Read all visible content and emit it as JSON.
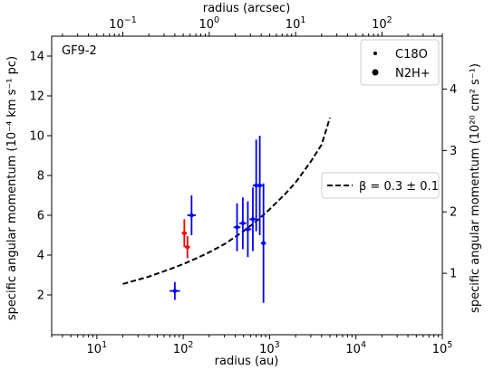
{
  "chart_data": {
    "type": "scatter",
    "annotation": "GF9-2",
    "xlabel": "radius (au)",
    "x2label": "radius (arcsec)",
    "ylabel": "specific angular momentum (10⁻⁴ km s⁻¹ pc)",
    "y2label": "specific angular momentum (10²⁰ cm² s⁻¹)",
    "xscale": "log",
    "xlim": [
      3,
      100000
    ],
    "ylim": [
      0,
      15
    ],
    "x_ticks": [
      {
        "value": 10,
        "base": "10",
        "exp": "1"
      },
      {
        "value": 100,
        "base": "10",
        "exp": "2"
      },
      {
        "value": 1000,
        "base": "10",
        "exp": "3"
      },
      {
        "value": 10000,
        "base": "10",
        "exp": "4"
      },
      {
        "value": 100000,
        "base": "10",
        "exp": "5"
      }
    ],
    "y_ticks": [
      2,
      4,
      6,
      8,
      10,
      12,
      14
    ],
    "x2_ticks": [
      {
        "value": 0.1,
        "base": "10",
        "exp": "−1"
      },
      {
        "value": 1,
        "base": "10",
        "exp": "0"
      },
      {
        "value": 10,
        "base": "10",
        "exp": "1"
      },
      {
        "value": 100,
        "base": "10",
        "exp": "2"
      }
    ],
    "x2_ratio_au_per_arcsec": 200,
    "y2_ticks": [
      1,
      2,
      3,
      4
    ],
    "y2_ratio": 3.086,
    "legend_markers": [
      {
        "name": "C18O",
        "marker": "small-dot"
      },
      {
        "name": "N2H+",
        "marker": "large-dot"
      }
    ],
    "legend_line": {
      "label": "β = 0.3 ± 0.1",
      "style": "dashed"
    },
    "series": [
      {
        "color": "#0000ff",
        "points": [
          {
            "x": 80,
            "y": 2.2,
            "yerr": 0.45,
            "xerr": 0.06
          },
          {
            "x": 125,
            "y": 6.0,
            "yerr": 1.0,
            "xerr": 0.05
          },
          {
            "x": 420,
            "y": 5.4,
            "yerr": 1.2,
            "xerr": 0.04
          },
          {
            "x": 490,
            "y": 5.6,
            "yerr": 1.3,
            "xerr": 0.04
          },
          {
            "x": 560,
            "y": 5.3,
            "yerr": 1.4,
            "xerr": 0.04
          },
          {
            "x": 640,
            "y": 5.8,
            "yerr": 1.6,
            "xerr": 0.04
          },
          {
            "x": 700,
            "y": 7.5,
            "yerr": 2.3,
            "xerr": 0.04
          },
          {
            "x": 770,
            "y": 7.5,
            "yerr": 2.5,
            "xerr": 0.04
          },
          {
            "x": 850,
            "y": 4.6,
            "yerr": 3.0,
            "xerr": 0.03
          }
        ]
      },
      {
        "color": "#ff0000",
        "points": [
          {
            "x": 103,
            "y": 5.1,
            "yerr": 0.7,
            "xerr": 0.03
          },
          {
            "x": 112,
            "y": 4.4,
            "yerr": 0.55,
            "xerr": 0.03
          }
        ]
      }
    ],
    "fit_line": {
      "x": [
        20,
        40,
        70,
        100,
        150,
        200,
        300,
        500,
        700,
        1000,
        1500,
        2000,
        3000,
        4000,
        5000
      ],
      "y": [
        2.55,
        2.92,
        3.29,
        3.55,
        3.88,
        4.14,
        4.55,
        5.2,
        5.7,
        6.3,
        7.05,
        7.65,
        8.7,
        9.55,
        10.9
      ]
    }
  }
}
